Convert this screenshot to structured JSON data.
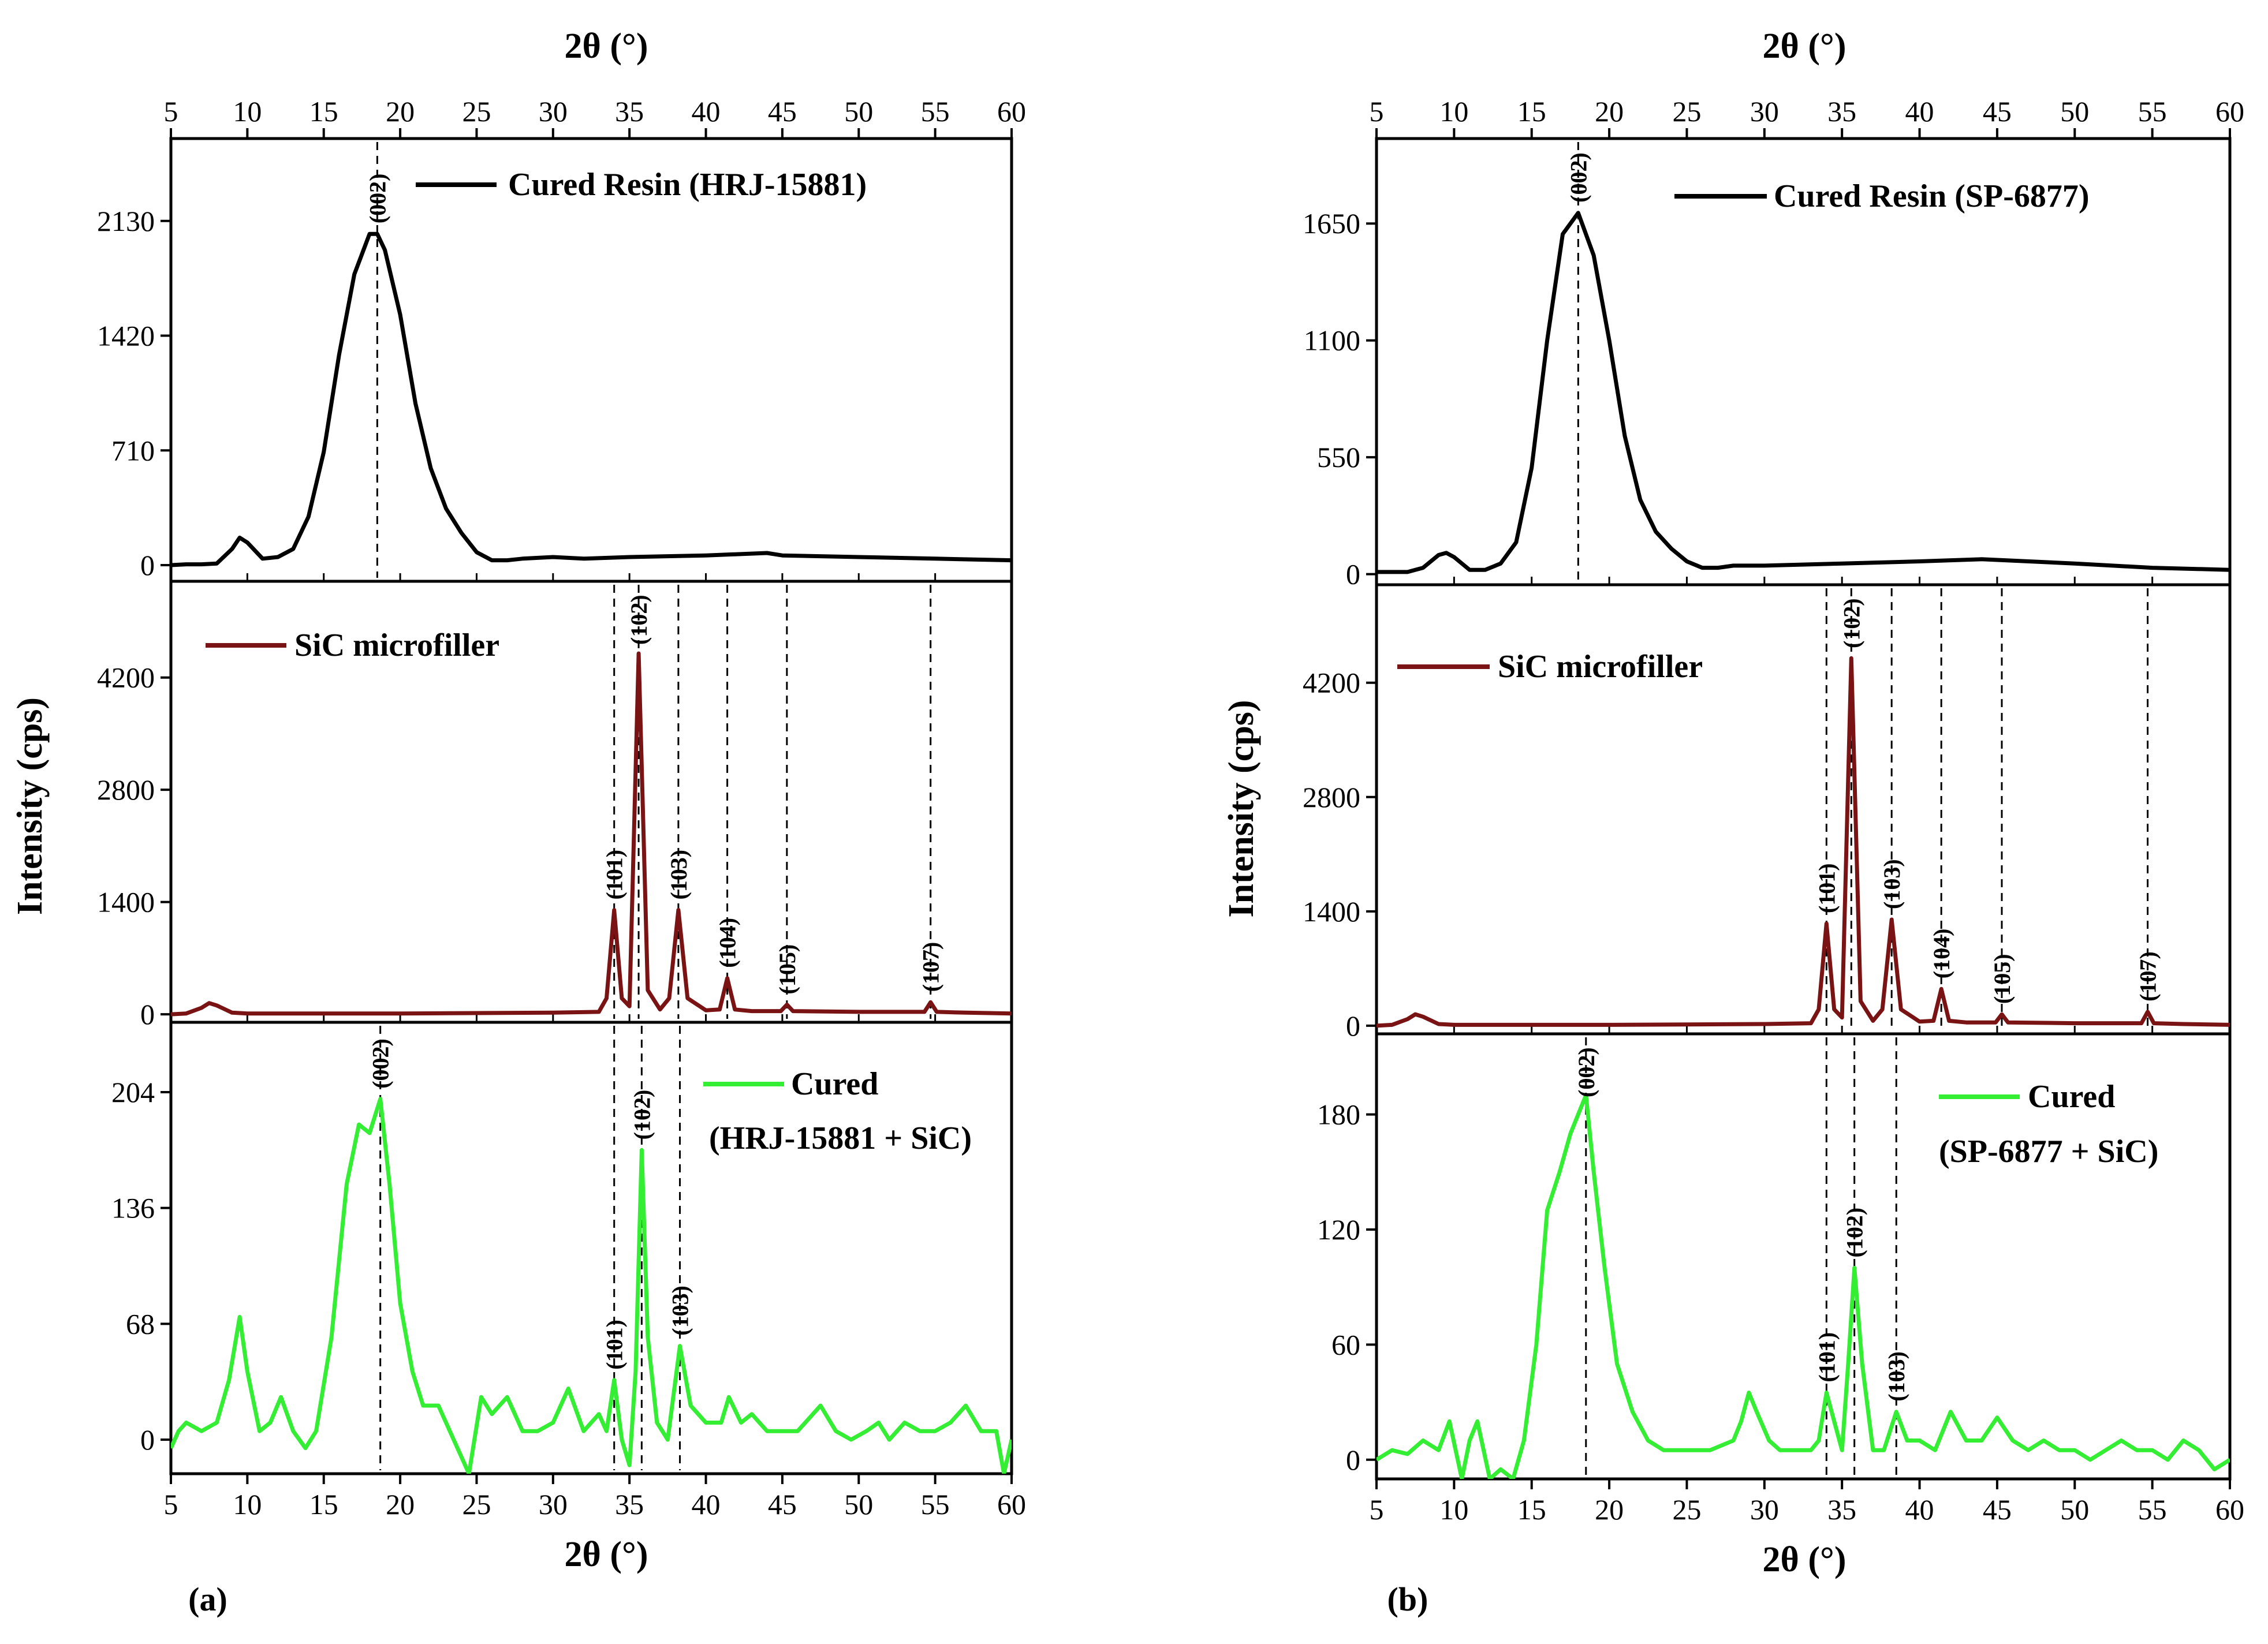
{
  "figure": {
    "type": "line",
    "x_axis_label": "2θ (°)",
    "y_axis_label": "Intensity (cps)",
    "x_ticks": [
      "5",
      "10",
      "15",
      "20",
      "25",
      "30",
      "35",
      "40",
      "45",
      "50",
      "55",
      "60"
    ]
  },
  "chart_data": [
    {
      "type": "line",
      "panel_label": "(a)",
      "xlabel": "2θ (°)",
      "ylabel": "Intensity (cps)",
      "xlim": [
        5,
        60
      ],
      "x_ticks": [
        5,
        10,
        15,
        20,
        25,
        30,
        35,
        40,
        45,
        50,
        55,
        60
      ],
      "subplots": [
        {
          "legend": "Cured Resin (HRJ-15881)",
          "color": "#000000",
          "ylim": [
            -100,
            2640
          ],
          "y_ticks": [
            0,
            710,
            1420,
            2130
          ],
          "peaks": [
            {
              "x": 18.5,
              "label": "(002)"
            }
          ],
          "series": {
            "x": [
              5,
              6,
              7,
              8,
              9,
              9.5,
              10,
              11,
              12,
              13,
              14,
              15,
              16,
              17,
              18,
              18.5,
              19,
              20,
              21,
              22,
              23,
              24,
              25,
              26,
              27,
              28,
              30,
              32,
              35,
              40,
              44,
              45,
              50,
              55,
              60
            ],
            "y": [
              0,
              5,
              5,
              10,
              100,
              170,
              140,
              40,
              50,
              100,
              300,
              700,
              1300,
              1800,
              2050,
              2050,
              1950,
              1550,
              1000,
              600,
              350,
              200,
              80,
              30,
              30,
              40,
              50,
              40,
              50,
              60,
              75,
              60,
              50,
              40,
              30
            ]
          }
        },
        {
          "legend": "SiC microfiller",
          "color": "#7a1414",
          "ylim": [
            -100,
            5400
          ],
          "y_ticks": [
            0,
            1400,
            2800,
            4200
          ],
          "peaks": [
            {
              "x": 34.0,
              "label": "(101)"
            },
            {
              "x": 35.6,
              "label": "(102)"
            },
            {
              "x": 38.2,
              "label": "(103)"
            },
            {
              "x": 41.4,
              "label": "(104)"
            },
            {
              "x": 45.3,
              "label": "(105)"
            },
            {
              "x": 54.7,
              "label": "(107)"
            }
          ],
          "series": {
            "x": [
              5,
              6,
              7,
              7.5,
              8,
              9,
              10,
              15,
              20,
              25,
              30,
              33,
              33.5,
              34,
              34.5,
              35,
              35.6,
              36.2,
              37,
              37.6,
              38.2,
              38.8,
              40,
              40.9,
              41.4,
              41.9,
              43,
              44.9,
              45.3,
              45.7,
              50,
              54.3,
              54.7,
              55.1,
              57,
              60
            ],
            "y": [
              0,
              10,
              80,
              140,
              110,
              20,
              10,
              10,
              10,
              15,
              20,
              30,
              200,
              1300,
              200,
              100,
              4500,
              300,
              60,
              200,
              1300,
              200,
              50,
              60,
              450,
              60,
              40,
              40,
              120,
              40,
              30,
              30,
              150,
              30,
              20,
              10
            ]
          }
        },
        {
          "legend": "Cured",
          "legend2": "(HRJ-15881 + SiC)",
          "color": "#33ee33",
          "ylim": [
            -20,
            245
          ],
          "y_ticks": [
            0,
            68,
            136,
            204
          ],
          "peaks": [
            {
              "x": 18.7,
              "label": "(002)"
            },
            {
              "x": 34.0,
              "label": "(101)"
            },
            {
              "x": 35.8,
              "label": "(102)"
            },
            {
              "x": 38.3,
              "label": "(103)"
            }
          ],
          "series": {
            "x": [
              5,
              5.5,
              6,
              7,
              8,
              8.8,
              9.5,
              10,
              10.8,
              11.5,
              12.2,
              13,
              13.8,
              14.5,
              15.5,
              16.5,
              17.3,
              18,
              18.7,
              19.3,
              20,
              20.8,
              21.5,
              22.5,
              23.5,
              24.5,
              25.3,
              26,
              27,
              28,
              29,
              30,
              31,
              32,
              33,
              33.5,
              34,
              34.5,
              35,
              35.4,
              35.8,
              36.2,
              36.8,
              37.5,
              38.3,
              39,
              40,
              41,
              41.5,
              42.3,
              43,
              44,
              45,
              46,
              47,
              47.5,
              48.5,
              49.5,
              50.5,
              51.3,
              52,
              53,
              54,
              55,
              56,
              57,
              58,
              59,
              59.5,
              60
            ],
            "y": [
              -5,
              5,
              10,
              5,
              10,
              35,
              72,
              40,
              5,
              10,
              25,
              5,
              -5,
              5,
              60,
              150,
              185,
              180,
              200,
              150,
              80,
              40,
              20,
              20,
              0,
              -20,
              25,
              15,
              25,
              5,
              5,
              10,
              30,
              5,
              15,
              5,
              35,
              0,
              -15,
              40,
              170,
              60,
              10,
              0,
              55,
              20,
              10,
              10,
              25,
              10,
              15,
              5,
              5,
              5,
              15,
              20,
              5,
              0,
              5,
              10,
              0,
              10,
              5,
              5,
              10,
              20,
              5,
              5,
              -20,
              0
            ]
          }
        }
      ]
    },
    {
      "type": "line",
      "panel_label": "(b)",
      "xlabel": "2θ (°)",
      "ylabel": "Intensity (cps)",
      "xlim": [
        5,
        60
      ],
      "x_ticks": [
        5,
        10,
        15,
        20,
        25,
        30,
        35,
        40,
        45,
        50,
        55,
        60
      ],
      "subplots": [
        {
          "legend": "Cured Resin (SP-6877)",
          "color": "#000000",
          "ylim": [
            -50,
            2050
          ],
          "y_ticks": [
            0,
            550,
            1100,
            1650
          ],
          "peaks": [
            {
              "x": 18.0,
              "label": "(002)"
            }
          ],
          "series": {
            "x": [
              5,
              6,
              7,
              8,
              9,
              9.5,
              10,
              11,
              12,
              13,
              14,
              15,
              16,
              17,
              18,
              19,
              20,
              21,
              22,
              23,
              24,
              25,
              26,
              27,
              28,
              30,
              35,
              40,
              44,
              50,
              55,
              60
            ],
            "y": [
              10,
              10,
              10,
              30,
              90,
              100,
              80,
              20,
              20,
              50,
              150,
              500,
              1100,
              1600,
              1700,
              1500,
              1100,
              650,
              350,
              200,
              120,
              60,
              30,
              30,
              40,
              40,
              50,
              60,
              70,
              50,
              30,
              20
            ]
          }
        },
        {
          "legend": "SiC microfiller",
          "color": "#7a1414",
          "ylim": [
            -100,
            5400
          ],
          "y_ticks": [
            0,
            1400,
            2800,
            4200
          ],
          "peaks": [
            {
              "x": 34.0,
              "label": "(101)"
            },
            {
              "x": 35.6,
              "label": "(102)"
            },
            {
              "x": 38.2,
              "label": "(103)"
            },
            {
              "x": 41.4,
              "label": "(104)"
            },
            {
              "x": 45.3,
              "label": "(105)"
            },
            {
              "x": 54.7,
              "label": "(107)"
            }
          ],
          "series": {
            "x": [
              5,
              6,
              7,
              7.5,
              8,
              9,
              10,
              15,
              20,
              25,
              30,
              33,
              33.5,
              34,
              34.5,
              35,
              35.6,
              36.2,
              37,
              37.6,
              38.2,
              38.8,
              40,
              40.9,
              41.4,
              41.9,
              43,
              44.9,
              45.3,
              45.7,
              50,
              54.3,
              54.7,
              55.1,
              57,
              60
            ],
            "y": [
              0,
              10,
              80,
              140,
              110,
              20,
              10,
              10,
              10,
              15,
              20,
              30,
              200,
              1250,
              200,
              100,
              4500,
              300,
              60,
              200,
              1300,
              200,
              50,
              60,
              450,
              60,
              40,
              40,
              140,
              40,
              30,
              30,
              170,
              30,
              20,
              10
            ]
          }
        },
        {
          "legend": "Cured",
          "legend2": "(SP-6877 + SiC)",
          "color": "#33ee33",
          "ylim": [
            -10,
            222
          ],
          "y_ticks": [
            0,
            60,
            120,
            180
          ],
          "peaks": [
            {
              "x": 18.5,
              "label": "(002)"
            },
            {
              "x": 34.0,
              "label": "(101)"
            },
            {
              "x": 35.8,
              "label": "(102)"
            },
            {
              "x": 38.5,
              "label": "(103)"
            }
          ],
          "series": {
            "x": [
              5,
              6,
              7,
              8,
              9,
              9.7,
              10.5,
              11,
              11.5,
              12.3,
              13,
              13.8,
              14.5,
              15.3,
              16,
              16.8,
              17.5,
              18,
              18.5,
              19,
              19.7,
              20.5,
              21.5,
              22.5,
              23.5,
              25,
              26.5,
              28,
              28.5,
              29,
              29.5,
              30.3,
              31,
              32,
              33,
              33.5,
              34,
              34.5,
              35,
              35.4,
              35.8,
              36.3,
              37,
              37.7,
              38.5,
              39.2,
              40,
              41,
              42,
              43,
              44,
              45,
              46,
              47,
              48,
              49,
              50,
              51,
              52,
              53,
              54,
              55,
              56,
              57,
              58,
              59,
              60
            ],
            "y": [
              0,
              5,
              3,
              10,
              5,
              20,
              -10,
              10,
              20,
              -10,
              -5,
              -10,
              10,
              60,
              130,
              150,
              170,
              180,
              190,
              150,
              100,
              50,
              25,
              10,
              5,
              5,
              5,
              10,
              20,
              35,
              25,
              10,
              5,
              5,
              5,
              10,
              35,
              20,
              5,
              50,
              100,
              50,
              5,
              5,
              25,
              10,
              10,
              5,
              25,
              10,
              10,
              22,
              10,
              5,
              10,
              5,
              5,
              0,
              5,
              10,
              5,
              5,
              0,
              10,
              5,
              -5,
              0
            ]
          }
        }
      ]
    }
  ]
}
